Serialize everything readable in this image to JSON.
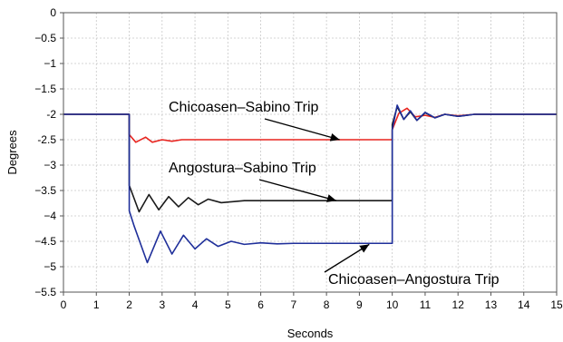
{
  "chart_data": {
    "type": "line",
    "title": "",
    "xlabel": "Seconds",
    "ylabel": "Degrees",
    "xlim": [
      0,
      15
    ],
    "ylim": [
      -5.5,
      0
    ],
    "x_ticks": [
      0,
      1,
      2,
      3,
      4,
      5,
      6,
      7,
      8,
      9,
      10,
      11,
      12,
      13,
      14,
      15
    ],
    "x_tick_labels": [
      "0",
      "1",
      "2",
      "3",
      "4",
      "5",
      "6",
      "7",
      "8",
      "9",
      "10",
      "11",
      "12",
      "13",
      "14",
      "15"
    ],
    "y_ticks": [
      0,
      -0.5,
      -1,
      -1.5,
      -2,
      -2.5,
      -3,
      -3.5,
      -4,
      -4.5,
      -5,
      -5.5
    ],
    "y_tick_labels": [
      "0",
      "−0.5",
      "−1",
      "−1.5",
      "-2",
      "-2.5",
      "−3",
      "−3.5",
      "−4",
      "−4.5",
      "−5",
      "−5.5"
    ],
    "grid": true,
    "series": [
      {
        "name": "Chicoasen–Sabino Trip",
        "color": "#e8241f",
        "x": [
          0,
          1,
          2,
          2.001,
          2.2,
          2.5,
          2.7,
          3,
          3.3,
          3.6,
          4,
          5,
          6,
          7,
          8,
          9,
          10,
          10.001,
          10.2,
          10.45,
          10.7,
          11,
          11.3,
          11.6,
          12,
          12.5,
          13,
          14,
          15
        ],
        "values": [
          -2.0,
          -2.0,
          -2.0,
          -2.4,
          -2.55,
          -2.45,
          -2.55,
          -2.5,
          -2.53,
          -2.5,
          -2.5,
          -2.5,
          -2.5,
          -2.5,
          -2.5,
          -2.5,
          -2.5,
          -2.3,
          -1.98,
          -1.88,
          -2.05,
          -2.02,
          -2.06,
          -2.0,
          -2.03,
          -2.0,
          -2.0,
          -2.0,
          -2.0
        ]
      },
      {
        "name": "Angostura–Sabino Trip",
        "color": "#1a1a1a",
        "x": [
          0,
          1,
          2,
          2.001,
          2.3,
          2.6,
          2.9,
          3.2,
          3.5,
          3.8,
          4.1,
          4.4,
          4.8,
          5.5,
          6,
          7,
          8,
          9,
          10,
          10.001,
          10.15,
          10.35,
          10.55,
          10.75,
          11,
          11.3,
          11.6,
          12,
          12.5,
          13,
          14,
          15
        ],
        "values": [
          -2.0,
          -2.0,
          -2.0,
          -3.4,
          -3.92,
          -3.58,
          -3.88,
          -3.62,
          -3.82,
          -3.64,
          -3.78,
          -3.67,
          -3.74,
          -3.7,
          -3.7,
          -3.7,
          -3.7,
          -3.7,
          -3.7,
          -2.2,
          -1.85,
          -2.1,
          -1.95,
          -2.12,
          -1.97,
          -2.07,
          -2.0,
          -2.04,
          -2.0,
          -2.0,
          -2.0,
          -2.0
        ]
      },
      {
        "name": "Chicoasen–Angostura Trip",
        "color": "#1f2f9a",
        "x": [
          0,
          1,
          2,
          2.001,
          2.15,
          2.55,
          2.95,
          3.3,
          3.65,
          4.0,
          4.35,
          4.7,
          5.1,
          5.5,
          6,
          6.5,
          7,
          8,
          9,
          10,
          10.001,
          10.15,
          10.35,
          10.55,
          10.75,
          11,
          11.3,
          11.6,
          12,
          12.5,
          13,
          14,
          15
        ],
        "values": [
          -2.0,
          -2.0,
          -2.0,
          -3.9,
          -4.2,
          -4.92,
          -4.3,
          -4.75,
          -4.38,
          -4.65,
          -4.45,
          -4.6,
          -4.5,
          -4.56,
          -4.53,
          -4.55,
          -4.54,
          -4.54,
          -4.54,
          -4.54,
          -2.3,
          -1.82,
          -2.1,
          -1.93,
          -2.12,
          -1.96,
          -2.07,
          -2.0,
          -2.04,
          -2.0,
          -2.0,
          -2.0,
          -2.0
        ]
      }
    ],
    "annotations": [
      {
        "text": "Chicoasen–Sabino Trip",
        "target_x": 8.4,
        "target_y": -2.5
      },
      {
        "text": "Angostura–Sabino Trip",
        "target_x": 8.3,
        "target_y": -3.7
      },
      {
        "text": "Chicoasen–Angostura Trip",
        "target_x": 9.3,
        "target_y": -4.56
      }
    ]
  }
}
